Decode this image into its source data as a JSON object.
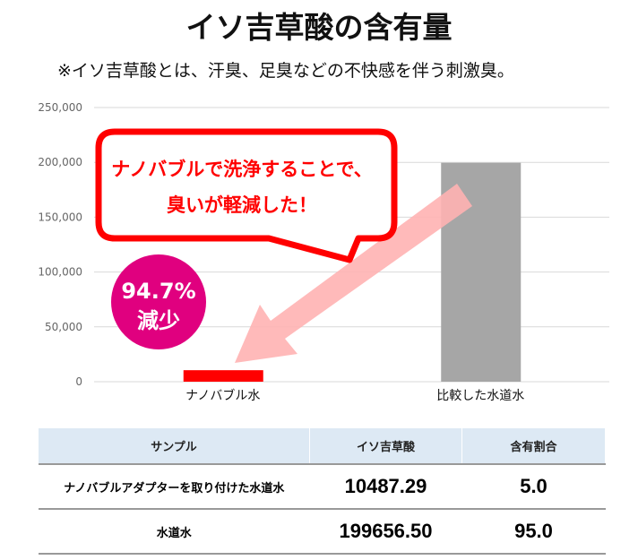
{
  "title": "イソ吉草酸の含有量",
  "subtitle": "※イソ吉草酸とは、汗臭、足臭などの不快感を伴う刺激臭。",
  "chart_data": {
    "type": "bar",
    "categories": [
      "ナノバブル水",
      "比較した水道水"
    ],
    "values": [
      10487.29,
      199656.5
    ],
    "ylim": [
      0,
      250000
    ],
    "yticks": [
      0,
      50000,
      100000,
      150000,
      200000,
      250000
    ],
    "ytick_labels": [
      "0",
      "50,000",
      "100,000",
      "150,000",
      "200,000",
      "250,000"
    ],
    "grid": true,
    "colors": [
      "#ff0000",
      "#a6a6a6"
    ],
    "annotations": {
      "callout_line1": "ナノバブルで洗浄することで、",
      "callout_line2": "臭いが軽減した！",
      "badge_line1": "94.7%",
      "badge_line2": "減少",
      "callout_color": "#ff0000",
      "badge_color": "#e0007f",
      "arrow_color": "#ffb3b3"
    }
  },
  "table": {
    "headers": [
      "サンプル",
      "イソ吉草酸",
      "含有割合"
    ],
    "rows": [
      [
        "ナノバブルアダプターを取り付けた水道水",
        "10487.29",
        "5.0"
      ],
      [
        "水道水",
        "199656.50",
        "95.0"
      ]
    ]
  }
}
